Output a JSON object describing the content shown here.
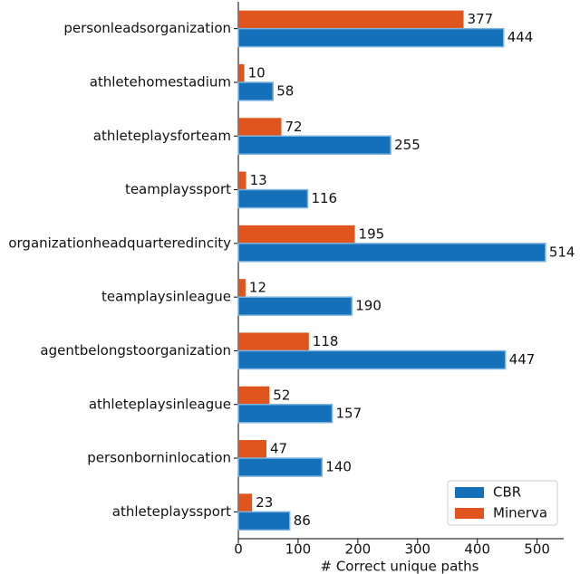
{
  "chart_data": {
    "type": "bar",
    "orientation": "horizontal",
    "categories": [
      "personleadsorganization",
      "athletehomestadium",
      "athleteplaysforteam",
      "teamplayssport",
      "organizationheadquarteredincity",
      "teamplaysinleague",
      "agentbelongstoorganization",
      "athleteplaysinleague",
      "personborninlocation",
      "athleteplayssport"
    ],
    "series": [
      {
        "name": "Minerva",
        "color": "#e0541e",
        "values": [
          377,
          10,
          72,
          13,
          195,
          12,
          118,
          52,
          47,
          23
        ]
      },
      {
        "name": "CBR",
        "color": "#1470b8",
        "values": [
          444,
          58,
          255,
          116,
          514,
          190,
          447,
          157,
          140,
          86
        ]
      }
    ],
    "legend_order": [
      "CBR",
      "Minerva"
    ],
    "xlabel": "# Correct unique paths",
    "xlim": [
      0,
      540
    ],
    "xticks": [
      0,
      100,
      200,
      300,
      400,
      500
    ],
    "legend": "lower right"
  }
}
